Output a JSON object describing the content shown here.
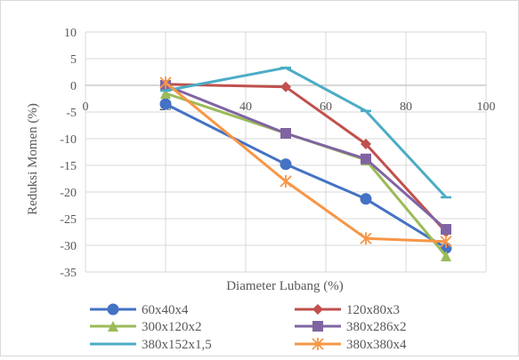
{
  "chart_data": {
    "type": "line",
    "title": "",
    "xlabel": "Diameter Lubang (%)",
    "ylabel": "Reduksi Momen (%)",
    "xlim": [
      0,
      100
    ],
    "ylim": [
      -35,
      10
    ],
    "x_ticks": [
      "0",
      "20",
      "40",
      "60",
      "80",
      "100"
    ],
    "y_ticks": [
      "10",
      "5",
      "0",
      "-5",
      "-10",
      "-15",
      "-20",
      "-25",
      "-30",
      "-35"
    ],
    "grid": "horizontal",
    "legend_position": "bottom",
    "x": [
      20,
      50,
      70,
      90
    ],
    "series": [
      {
        "name": "60x40x4",
        "color": "#4472C4",
        "marker": "circle",
        "values": [
          -3.5,
          -14.8,
          -21.3,
          -30.5
        ]
      },
      {
        "name": "120x80x3",
        "color": "#C0504D",
        "marker": "diamond",
        "values": [
          0.2,
          -0.3,
          -11.0,
          -27.5
        ]
      },
      {
        "name": "300x120x2",
        "color": "#9BBB59",
        "marker": "triangle",
        "values": [
          -1.5,
          -9.0,
          -14.0,
          -32.0
        ]
      },
      {
        "name": "380x286x2",
        "color": "#8064A2",
        "marker": "square",
        "values": [
          0.0,
          -9.0,
          -13.8,
          -27.0
        ]
      },
      {
        "name": "380x152x1,5",
        "color": "#4BACC6",
        "marker": "dash",
        "values": [
          -1.0,
          3.3,
          -4.8,
          -21.0
        ]
      },
      {
        "name": "380x380x4",
        "color": "#F79646",
        "marker": "star",
        "values": [
          0.5,
          -18.0,
          -28.7,
          -29.3
        ]
      }
    ]
  }
}
